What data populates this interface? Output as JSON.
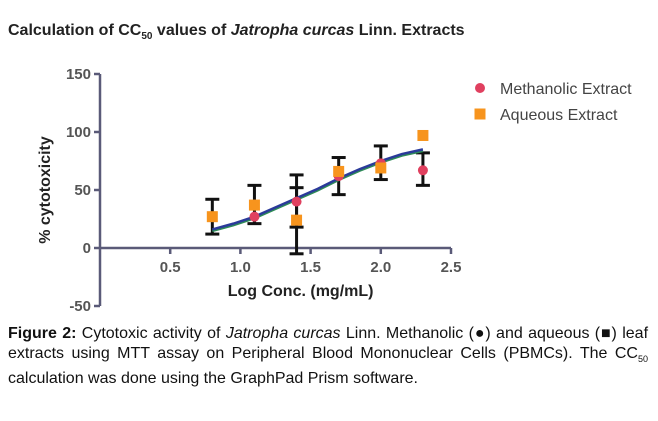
{
  "chart_data": {
    "type": "scatter",
    "title_main": "Calculation of CC",
    "title_sub": "50",
    "title_rest": " values of ",
    "title_italic": "Jatropha curcas",
    "title_end": " Linn. Extracts",
    "xlabel": "Log Conc. (mg/mL)",
    "ylabel": "% cytotoxicity",
    "xlim": [
      0,
      2.5
    ],
    "ylim": [
      -50,
      150
    ],
    "xticks": [
      "0.5",
      "1.0",
      "1.5",
      "2.0",
      "2.5"
    ],
    "xtick_values": [
      0.5,
      1.0,
      1.5,
      2.0,
      2.5
    ],
    "yticks": [
      "150",
      "100",
      "50",
      "0",
      "-50"
    ],
    "ytick_values": [
      150,
      100,
      50,
      0,
      -50
    ],
    "legend_position": "top-right",
    "grid": false,
    "series": [
      {
        "name": "Methanolic Extract",
        "marker": "circle",
        "color": "#e0405f",
        "curve_color": "#2e8b57",
        "x": [
          0.8,
          1.1,
          1.4,
          1.7,
          2.0,
          2.3
        ],
        "y": [
          27,
          27,
          40,
          62,
          73,
          67
        ],
        "err_low": [
          12,
          21,
          18,
          46,
          59,
          54
        ],
        "err_high": [
          42,
          54,
          63,
          78,
          88,
          82
        ]
      },
      {
        "name": "Aqueous Extract",
        "marker": "square",
        "color": "#f7941d",
        "curve_color": "#2b3a9a",
        "x": [
          0.8,
          1.1,
          1.4,
          1.7,
          2.0,
          2.3
        ],
        "y": [
          27,
          37,
          24,
          66,
          69,
          97
        ],
        "err_low": [],
        "err_high": []
      }
    ],
    "fit_curve": {
      "x": [
        0.8,
        0.95,
        1.1,
        1.25,
        1.4,
        1.55,
        1.7,
        1.85,
        2.0,
        2.15,
        2.3
      ],
      "y": [
        16,
        21,
        27,
        35,
        43,
        51,
        60,
        68,
        75,
        81,
        85
      ]
    }
  },
  "caption": {
    "label": "Figure 2:",
    "t1": " Cytotoxic activity of ",
    "i1": "Jatropha curcas",
    "t2": " Linn. Methanolic (●) and aqueous (■) leaf extracts using MTT assay on Peripheral Blood Mononuclear Cells (PBMCs). The CC",
    "sub": "50",
    "t3": " calculation was done using the GraphPad Prism software."
  }
}
